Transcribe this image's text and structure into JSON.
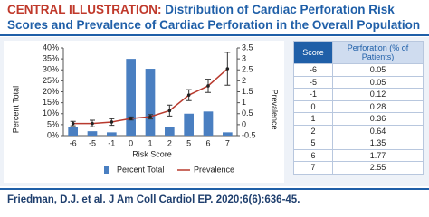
{
  "header": {
    "lead": "CENTRAL ILLUSTRATION:",
    "title": "Distribution of Cardiac Perforation Risk Scores and Prevalence of Cardiac Perforation in the Overall Population"
  },
  "chart_data": {
    "type": "bar-line",
    "x_label": "Risk Score",
    "y_label": "Percent Total",
    "y2_label": "Prevalence",
    "categories": [
      "-6",
      "-5",
      "-1",
      "0",
      "1",
      "2",
      "5",
      "6",
      "7"
    ],
    "series": [
      {
        "name": "Percent Total",
        "type": "bar",
        "color": "#4a7fc1",
        "values": [
          4,
          2,
          1.5,
          35,
          30.5,
          4,
          10,
          11,
          1.5
        ]
      },
      {
        "name": "Prevalence",
        "type": "line",
        "axis": "y2",
        "color": "#b83a2e",
        "values": [
          0.05,
          0.05,
          0.12,
          0.28,
          0.36,
          0.64,
          1.35,
          1.77,
          2.55
        ],
        "errors": [
          0.1,
          0.15,
          0.15,
          0.07,
          0.1,
          0.25,
          0.25,
          0.3,
          0.75
        ]
      }
    ],
    "ylim": [
      0,
      40
    ],
    "yticks": [
      {
        "value": 0,
        "label": "0%"
      },
      {
        "value": 5,
        "label": "5%"
      },
      {
        "value": 10,
        "label": "10%"
      },
      {
        "value": 15,
        "label": "15%"
      },
      {
        "value": 20,
        "label": "20%"
      },
      {
        "value": 25,
        "label": "25%"
      },
      {
        "value": 30,
        "label": "30%"
      },
      {
        "value": 35,
        "label": "35%"
      },
      {
        "value": 40,
        "label": "40%"
      }
    ],
    "y2lim": [
      -0.5,
      3.5
    ],
    "y2ticks": [
      -0.5,
      0,
      0.5,
      1,
      1.5,
      2,
      2.5,
      3,
      3.5
    ],
    "legend": "bottom"
  },
  "table": {
    "headers": [
      "Score",
      "Perforation (% of Patients)"
    ],
    "rows": [
      [
        -6,
        0.05
      ],
      [
        -5,
        0.05
      ],
      [
        -1,
        0.12
      ],
      [
        0,
        0.28
      ],
      [
        1,
        0.36
      ],
      [
        2,
        0.64
      ],
      [
        5,
        1.35
      ],
      [
        6,
        1.77
      ],
      [
        7,
        2.55
      ]
    ]
  },
  "footer": "Friedman, D.J. et al. J Am Coll Cardiol EP. 2020;6(6):636-45."
}
